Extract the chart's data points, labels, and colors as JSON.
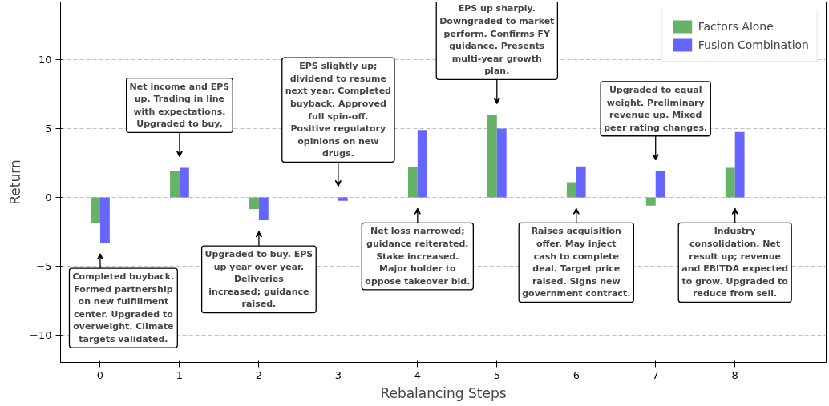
{
  "chart_data": {
    "type": "bar",
    "xlabel": "Rebalancing Steps",
    "ylabel": "Return",
    "x": [
      0,
      1,
      2,
      3,
      4,
      5,
      6,
      7,
      8
    ],
    "xlim": [
      -0.5,
      9.15
    ],
    "ylim": [
      -12,
      14.2
    ],
    "xticks": [
      0,
      1,
      2,
      3,
      4,
      5,
      6,
      7,
      8
    ],
    "yticks": [
      -10,
      -5,
      0,
      5,
      10
    ],
    "grid": "y",
    "legend": "top right",
    "series": [
      {
        "name": "Factors Alone",
        "color": "#66b266",
        "values": [
          -1.88,
          1.9,
          -0.85,
          -0.02,
          2.2,
          6.0,
          1.1,
          -0.6,
          2.15
        ]
      },
      {
        "name": "Fusion Combination",
        "color": "#6666ff",
        "values": [
          -3.3,
          2.15,
          -1.67,
          -0.25,
          4.9,
          5.0,
          2.25,
          1.9,
          4.75
        ]
      }
    ],
    "annotations": [
      "Completed buyback.\nFormed partnership\non new fulfillment\ncenter. Upgraded to\noverweight. Climate\ntargets validated.",
      "Net income and EPS\nup. Trading in line\nwith expectations.\nUpgraded to buy.",
      "Upgraded to buy. EPS\nup year over year.\nDeliveries\nincreased; guidance\nraised.",
      "EPS slightly up;\ndividend to resume\nnext year. Completed\nbuyback. Approved\nfull spin-off.\nPositive regulatory\nopinions on new\ndrugs.",
      "Net loss narrowed;\nguidance reiterated.\nStake increased.\nMajor holder to\noppose takeover bid.",
      "EPS up sharply.\nDowngraded to market\nperform. Confirms FY\nguidance. Presents\nmulti-year growth\nplan.",
      "Raises acquisition\noffer. May inject\ncash to complete\ndeal. Target price\nraised. Signs new\ngovernment contract.",
      "Upgraded to equal\nweight. Preliminary\nrevenue up. Mixed\npeer rating changes.",
      "Industry\nconsolidation. Net\nresult up; revenue\nand EBITDA expected\nto grow. Upgraded to\nreduce from sell."
    ]
  }
}
